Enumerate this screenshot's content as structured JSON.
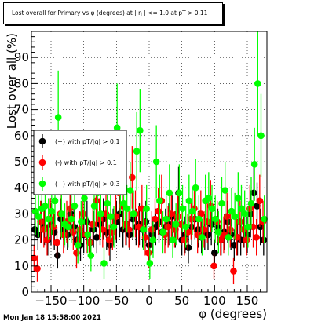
{
  "title": "Lost overall for Primary vs φ (degrees) at | η | <= 1.0 at pT > 0.11",
  "timestamp": "Mon Jan 18 15:58:00 2021",
  "colors": {
    "black": "#000000",
    "red": "#ff0000",
    "green": "#00ff00"
  },
  "chart_data": {
    "type": "scatter",
    "xlabel": "φ (degrees)",
    "ylabel": "Lost over all (%)",
    "xlim": [
      -180,
      180
    ],
    "ylim": [
      0,
      100
    ],
    "x_ticks": [
      -150,
      -100,
      -50,
      0,
      50,
      100,
      150
    ],
    "x_tick_labels": [
      "−150",
      "−100",
      "−50",
      "0",
      "50",
      "100",
      "150"
    ],
    "y_ticks": [
      0,
      10,
      20,
      30,
      40,
      50,
      60,
      70,
      80,
      90
    ],
    "y_tick_labels": [
      "0",
      "10",
      "20",
      "30",
      "40",
      "50",
      "60",
      "70",
      "80",
      "90"
    ],
    "grid": true,
    "legend_position": "middle-left",
    "series": [
      {
        "name": "(+) with pT/|q| > 0.1",
        "color": "#000000",
        "x": [
          -175,
          -170,
          -165,
          -160,
          -155,
          -150,
          -145,
          -140,
          -135,
          -130,
          -125,
          -120,
          -115,
          -110,
          -105,
          -100,
          -95,
          -90,
          -85,
          -80,
          -75,
          -70,
          -65,
          -60,
          -55,
          -50,
          -45,
          -40,
          -35,
          -30,
          -25,
          -20,
          -15,
          -10,
          -5,
          0,
          5,
          10,
          15,
          20,
          25,
          30,
          35,
          40,
          45,
          50,
          55,
          60,
          65,
          70,
          75,
          80,
          85,
          90,
          95,
          100,
          105,
          110,
          115,
          120,
          125,
          130,
          135,
          140,
          145,
          150,
          155,
          160,
          165,
          170,
          175
        ],
        "y": [
          24,
          22,
          27,
          25,
          20,
          26,
          23,
          14,
          28,
          24,
          22,
          30,
          25,
          20,
          18,
          22,
          27,
          19,
          24,
          21,
          26,
          28,
          23,
          18,
          25,
          27,
          30,
          24,
          26,
          22,
          28,
          25,
          26,
          24,
          27,
          18,
          22,
          25,
          27,
          23,
          25,
          26,
          29,
          24,
          38,
          20,
          22,
          17,
          25,
          28,
          24,
          21,
          23,
          22,
          26,
          15,
          25,
          20,
          23,
          27,
          22,
          18,
          21,
          20,
          24,
          22,
          30,
          38,
          33,
          25,
          20
        ],
        "err": [
          7,
          6,
          8,
          7,
          6,
          8,
          7,
          5,
          8,
          7,
          6,
          9,
          7,
          6,
          6,
          7,
          8,
          6,
          7,
          6,
          8,
          8,
          7,
          6,
          7,
          8,
          9,
          7,
          8,
          6,
          8,
          7,
          8,
          7,
          8,
          6,
          7,
          7,
          8,
          7,
          7,
          8,
          8,
          7,
          10,
          6,
          7,
          6,
          7,
          8,
          7,
          6,
          7,
          6,
          8,
          5,
          7,
          6,
          7,
          8,
          6,
          6,
          7,
          6,
          7,
          7,
          9,
          10,
          9,
          7,
          6
        ]
      },
      {
        "name": "(-) with pT/|q| > 0.1",
        "color": "#ff0000",
        "x": [
          -176,
          -171,
          -166,
          -161,
          -156,
          -151,
          -146,
          -141,
          -136,
          -131,
          -126,
          -121,
          -116,
          -111,
          -106,
          -101,
          -96,
          -91,
          -86,
          -81,
          -76,
          -71,
          -66,
          -61,
          -56,
          -51,
          -46,
          -41,
          -36,
          -31,
          -26,
          -21,
          -16,
          -11,
          -6,
          -1,
          4,
          9,
          14,
          19,
          24,
          29,
          34,
          39,
          44,
          49,
          54,
          59,
          64,
          69,
          74,
          79,
          84,
          89,
          94,
          99,
          104,
          109,
          114,
          119,
          124,
          129,
          134,
          139,
          144,
          149,
          154,
          159,
          164,
          169,
          174
        ],
        "y": [
          13,
          9,
          27,
          24,
          20,
          28,
          25,
          19,
          30,
          22,
          27,
          32,
          23,
          15,
          24,
          30,
          22,
          19,
          26,
          35,
          28,
          24,
          30,
          20,
          23,
          29,
          38,
          33,
          26,
          24,
          44,
          30,
          25,
          32,
          21,
          15,
          24,
          28,
          31,
          35,
          22,
          25,
          30,
          24,
          29,
          26,
          20,
          23,
          28,
          32,
          22,
          30,
          24,
          27,
          33,
          10,
          27,
          20,
          22,
          29,
          24,
          8,
          21,
          27,
          24,
          20,
          32,
          25,
          21,
          35,
          27
        ],
        "err": [
          5,
          5,
          8,
          7,
          6,
          8,
          7,
          6,
          9,
          7,
          8,
          9,
          7,
          6,
          7,
          9,
          7,
          6,
          8,
          10,
          8,
          7,
          9,
          6,
          7,
          9,
          11,
          10,
          8,
          7,
          12,
          9,
          8,
          9,
          7,
          6,
          7,
          8,
          9,
          10,
          7,
          8,
          9,
          7,
          9,
          8,
          6,
          7,
          8,
          9,
          7,
          9,
          7,
          8,
          10,
          5,
          8,
          6,
          7,
          9,
          7,
          5,
          7,
          8,
          7,
          6,
          9,
          8,
          7,
          10,
          8
        ]
      },
      {
        "name": "(+) with pT/|q| > 0.3",
        "color": "#00ff00",
        "x": [
          -174,
          -169,
          -164,
          -159,
          -154,
          -149,
          -144,
          -139,
          -134,
          -129,
          -124,
          -119,
          -114,
          -109,
          -104,
          -99,
          -94,
          -89,
          -84,
          -79,
          -74,
          -69,
          -64,
          -59,
          -54,
          -49,
          -44,
          -39,
          -34,
          -29,
          -24,
          -19,
          -14,
          -9,
          -4,
          1,
          6,
          11,
          16,
          21,
          26,
          31,
          36,
          41,
          46,
          51,
          56,
          61,
          66,
          71,
          76,
          81,
          86,
          91,
          96,
          101,
          106,
          111,
          116,
          121,
          126,
          131,
          136,
          141,
          146,
          151,
          156,
          161,
          166,
          171,
          176
        ],
        "y": [
          31,
          29,
          32,
          33,
          28,
          31,
          35,
          67,
          30,
          26,
          25,
          28,
          33,
          18,
          27,
          36,
          22,
          14,
          33,
          38,
          30,
          11,
          34,
          29,
          25,
          63,
          42,
          34,
          32,
          39,
          30,
          54,
          62,
          24,
          32,
          11,
          20,
          50,
          35,
          23,
          28,
          38,
          20,
          26,
          38,
          32,
          25,
          35,
          31,
          40,
          28,
          21,
          35,
          36,
          32,
          28,
          23,
          34,
          39,
          21,
          31,
          29,
          36,
          32,
          30,
          25,
          34,
          49,
          80,
          60,
          28
        ],
        "err": [
          9,
          8,
          9,
          10,
          8,
          9,
          10,
          18,
          9,
          8,
          8,
          9,
          10,
          7,
          8,
          10,
          7,
          6,
          10,
          11,
          9,
          6,
          10,
          9,
          8,
          17,
          12,
          10,
          9,
          11,
          9,
          15,
          16,
          8,
          9,
          6,
          7,
          14,
          10,
          8,
          9,
          11,
          7,
          8,
          11,
          9,
          8,
          10,
          9,
          11,
          9,
          7,
          10,
          10,
          9,
          9,
          8,
          10,
          11,
          7,
          9,
          9,
          10,
          9,
          9,
          8,
          10,
          14,
          20,
          16,
          9
        ]
      }
    ]
  }
}
